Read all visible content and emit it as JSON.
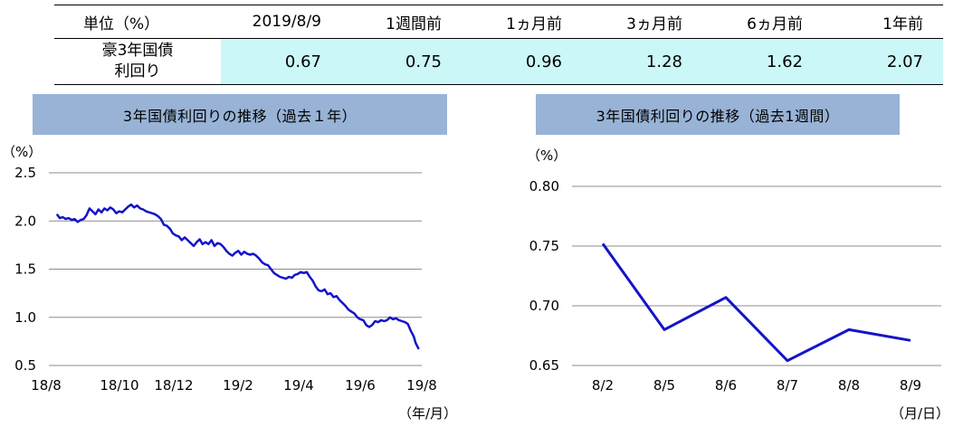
{
  "summary": {
    "unit_label": "単位（%）",
    "columns": [
      "2019/8/9",
      "1週間前",
      "1ヵ月前",
      "3ヵ月前",
      "6ヵ月前",
      "1年前"
    ],
    "row_label_line1": "豪3年国債",
    "row_label_line2": "利回り",
    "values": [
      "0.67",
      "0.75",
      "0.96",
      "1.28",
      "1.62",
      "2.07"
    ],
    "value_bg_color": "#ccf7f8"
  },
  "chart_data": [
    {
      "type": "line",
      "title": "3年国債利回りの推移（過去１年）",
      "ylabel": "（%）",
      "xlabel": "（年/月）",
      "ylim": [
        0.5,
        2.5
      ],
      "yticks": [
        "2.5",
        "2.0",
        "1.5",
        "1.0",
        "0.5"
      ],
      "xticks": [
        "18/8",
        "18/10",
        "18/12",
        "19/2",
        "19/4",
        "19/6",
        "19/8"
      ],
      "grid": true,
      "series": [
        {
          "color": "#1414c8",
          "points": [
            [
              "2018-08-09",
              2.07
            ],
            [
              "2018-08-12",
              2.03
            ],
            [
              "2018-08-15",
              2.04
            ],
            [
              "2018-08-18",
              2.02
            ],
            [
              "2018-08-21",
              2.03
            ],
            [
              "2018-08-24",
              2.01
            ],
            [
              "2018-08-27",
              2.02
            ],
            [
              "2018-08-30",
              1.99
            ],
            [
              "2018-09-02",
              2.01
            ],
            [
              "2018-09-05",
              2.02
            ],
            [
              "2018-09-08",
              2.06
            ],
            [
              "2018-09-11",
              2.13
            ],
            [
              "2018-09-14",
              2.1
            ],
            [
              "2018-09-17",
              2.07
            ],
            [
              "2018-09-20",
              2.12
            ],
            [
              "2018-09-23",
              2.09
            ],
            [
              "2018-09-26",
              2.13
            ],
            [
              "2018-09-29",
              2.11
            ],
            [
              "2018-10-02",
              2.14
            ],
            [
              "2018-10-05",
              2.12
            ],
            [
              "2018-10-08",
              2.08
            ],
            [
              "2018-10-11",
              2.1
            ],
            [
              "2018-10-14",
              2.09
            ],
            [
              "2018-10-17",
              2.12
            ],
            [
              "2018-10-20",
              2.15
            ],
            [
              "2018-10-23",
              2.17
            ],
            [
              "2018-10-26",
              2.14
            ],
            [
              "2018-10-29",
              2.16
            ],
            [
              "2018-11-01",
              2.13
            ],
            [
              "2018-11-04",
              2.12
            ],
            [
              "2018-11-07",
              2.1
            ],
            [
              "2018-11-10",
              2.09
            ],
            [
              "2018-11-13",
              2.08
            ],
            [
              "2018-11-16",
              2.07
            ],
            [
              "2018-11-19",
              2.05
            ],
            [
              "2018-11-22",
              2.02
            ],
            [
              "2018-11-25",
              1.96
            ],
            [
              "2018-11-28",
              1.95
            ],
            [
              "2018-12-01",
              1.92
            ],
            [
              "2018-12-04",
              1.87
            ],
            [
              "2018-12-07",
              1.85
            ],
            [
              "2018-12-10",
              1.84
            ],
            [
              "2018-12-13",
              1.8
            ],
            [
              "2018-12-16",
              1.83
            ],
            [
              "2018-12-19",
              1.8
            ],
            [
              "2018-12-22",
              1.77
            ],
            [
              "2018-12-25",
              1.74
            ],
            [
              "2018-12-28",
              1.78
            ],
            [
              "2018-12-31",
              1.81
            ],
            [
              "2019-01-03",
              1.76
            ],
            [
              "2019-01-06",
              1.78
            ],
            [
              "2019-01-09",
              1.76
            ],
            [
              "2019-01-12",
              1.8
            ],
            [
              "2019-01-15",
              1.74
            ],
            [
              "2019-01-18",
              1.77
            ],
            [
              "2019-01-21",
              1.76
            ],
            [
              "2019-01-24",
              1.73
            ],
            [
              "2019-01-27",
              1.69
            ],
            [
              "2019-01-30",
              1.66
            ],
            [
              "2019-02-02",
              1.64
            ],
            [
              "2019-02-05",
              1.67
            ],
            [
              "2019-02-08",
              1.69
            ],
            [
              "2019-02-11",
              1.65
            ],
            [
              "2019-02-14",
              1.68
            ],
            [
              "2019-02-17",
              1.66
            ],
            [
              "2019-02-20",
              1.65
            ],
            [
              "2019-02-23",
              1.66
            ],
            [
              "2019-02-26",
              1.64
            ],
            [
              "2019-03-01",
              1.61
            ],
            [
              "2019-03-04",
              1.57
            ],
            [
              "2019-03-07",
              1.55
            ],
            [
              "2019-03-10",
              1.54
            ],
            [
              "2019-03-13",
              1.5
            ],
            [
              "2019-03-16",
              1.46
            ],
            [
              "2019-03-19",
              1.44
            ],
            [
              "2019-03-22",
              1.42
            ],
            [
              "2019-03-25",
              1.41
            ],
            [
              "2019-03-28",
              1.4
            ],
            [
              "2019-03-31",
              1.42
            ],
            [
              "2019-04-03",
              1.41
            ],
            [
              "2019-04-06",
              1.44
            ],
            [
              "2019-04-09",
              1.45
            ],
            [
              "2019-04-12",
              1.47
            ],
            [
              "2019-04-15",
              1.46
            ],
            [
              "2019-04-18",
              1.47
            ],
            [
              "2019-04-21",
              1.42
            ],
            [
              "2019-04-24",
              1.38
            ],
            [
              "2019-04-27",
              1.32
            ],
            [
              "2019-04-30",
              1.28
            ],
            [
              "2019-05-03",
              1.27
            ],
            [
              "2019-05-06",
              1.29
            ],
            [
              "2019-05-09",
              1.24
            ],
            [
              "2019-05-12",
              1.25
            ],
            [
              "2019-05-15",
              1.21
            ],
            [
              "2019-05-18",
              1.22
            ],
            [
              "2019-05-21",
              1.18
            ],
            [
              "2019-05-24",
              1.15
            ],
            [
              "2019-05-27",
              1.12
            ],
            [
              "2019-05-30",
              1.08
            ],
            [
              "2019-06-02",
              1.06
            ],
            [
              "2019-06-05",
              1.04
            ],
            [
              "2019-06-08",
              1.0
            ],
            [
              "2019-06-11",
              0.98
            ],
            [
              "2019-06-14",
              0.97
            ],
            [
              "2019-06-17",
              0.92
            ],
            [
              "2019-06-20",
              0.9
            ],
            [
              "2019-06-23",
              0.92
            ],
            [
              "2019-06-26",
              0.96
            ],
            [
              "2019-06-29",
              0.95
            ],
            [
              "2019-07-02",
              0.97
            ],
            [
              "2019-07-05",
              0.96
            ],
            [
              "2019-07-08",
              0.97
            ],
            [
              "2019-07-11",
              1.0
            ],
            [
              "2019-07-14",
              0.98
            ],
            [
              "2019-07-17",
              0.99
            ],
            [
              "2019-07-20",
              0.97
            ],
            [
              "2019-07-23",
              0.96
            ],
            [
              "2019-07-26",
              0.95
            ],
            [
              "2019-07-29",
              0.93
            ],
            [
              "2019-08-01",
              0.86
            ],
            [
              "2019-08-04",
              0.8
            ],
            [
              "2019-08-06",
              0.73
            ],
            [
              "2019-08-09",
              0.67
            ]
          ]
        }
      ]
    },
    {
      "type": "line",
      "title": "3年国債利回りの推移（過去1週間）",
      "ylabel": "（%）",
      "xlabel": "（月/日）",
      "ylim": [
        0.65,
        0.8
      ],
      "yticks": [
        "0.80",
        "0.75",
        "0.70",
        "0.65"
      ],
      "categories": [
        "8/2",
        "8/5",
        "8/6",
        "8/7",
        "8/8",
        "8/9"
      ],
      "grid": true,
      "series": [
        {
          "color": "#1414c8",
          "values": [
            0.752,
            0.68,
            0.707,
            0.654,
            0.68,
            0.671
          ]
        }
      ]
    }
  ]
}
